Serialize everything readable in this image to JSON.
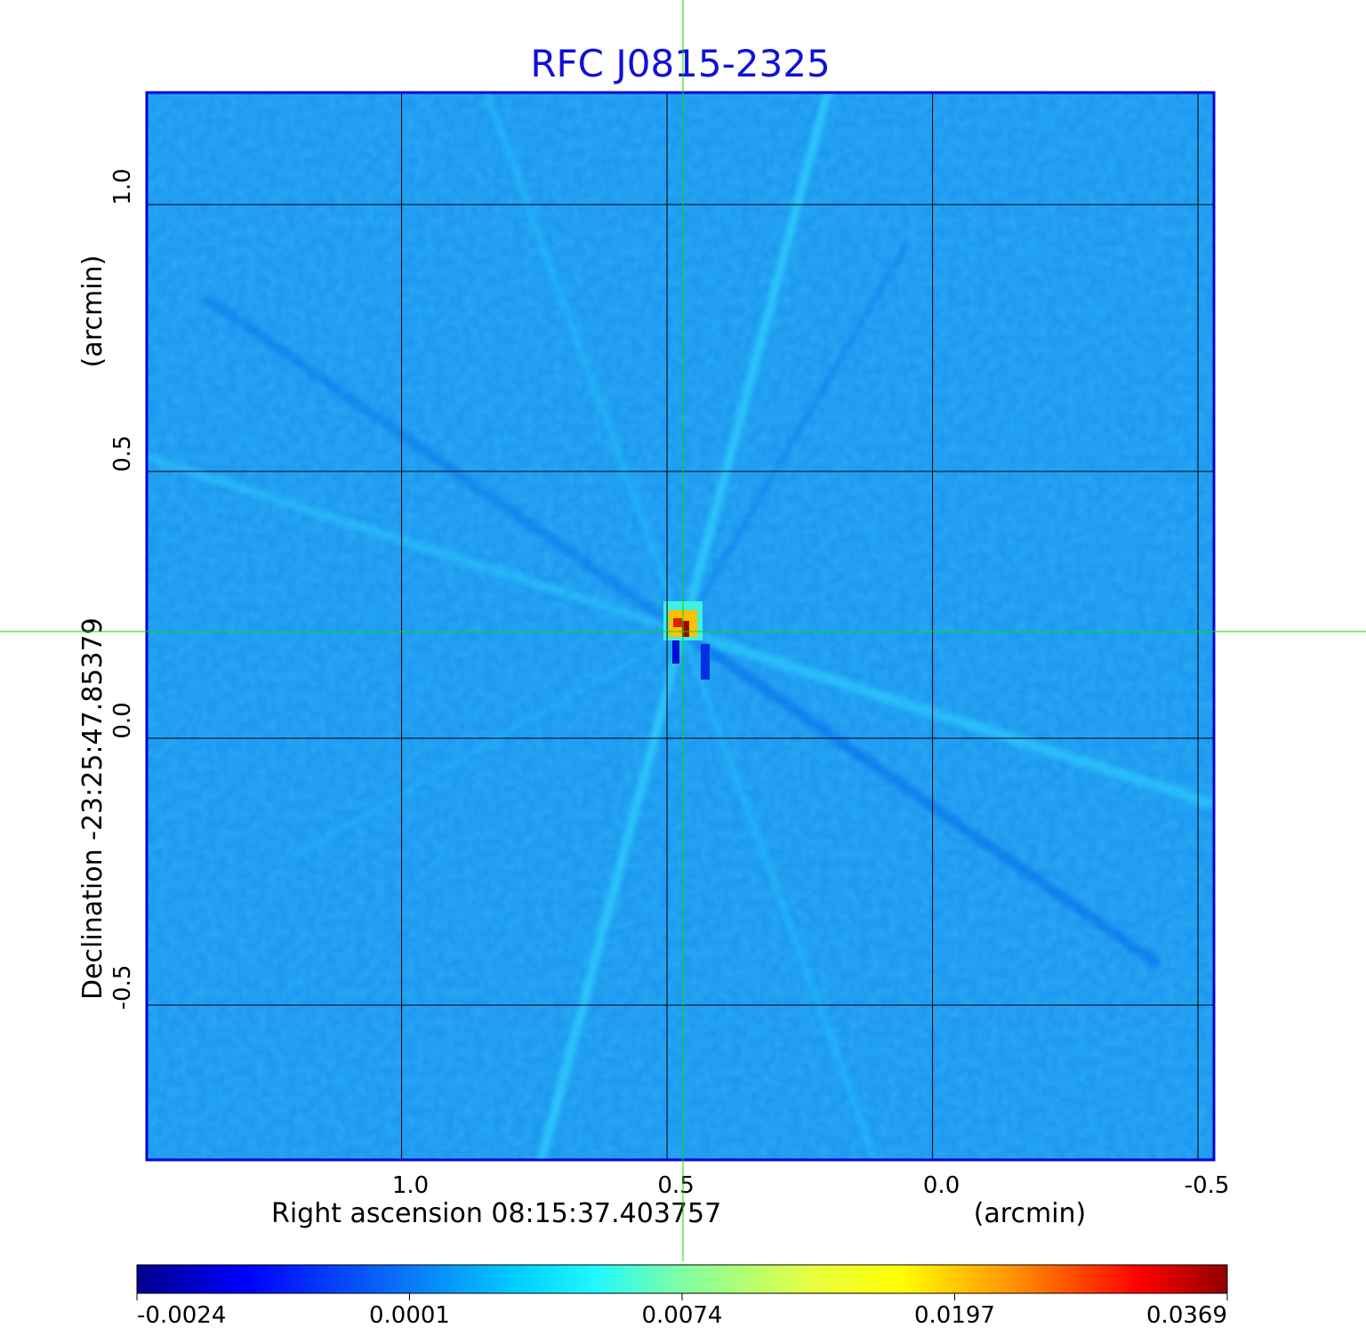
{
  "chart_data": {
    "type": "heatmap",
    "title": "RFC J0815-2325",
    "xlabel": "Right ascension  08:15:37.403757",
    "xunit": "(arcmin)",
    "ylabel": "Declination  -23:25:47.85379",
    "yunit": "(arcmin)",
    "x_range": [
      1.48,
      -0.53
    ],
    "y_range": [
      -0.79,
      1.21
    ],
    "x_ticks": [
      1.0,
      0.5,
      0.0,
      -0.5
    ],
    "x_tick_labels": [
      "1.0",
      "0.5",
      "0.0",
      "-0.5"
    ],
    "y_ticks": [
      1.0,
      0.5,
      0.0,
      -0.5
    ],
    "y_tick_labels": [
      "1.0",
      "0.5",
      "0.0",
      "-0.5"
    ],
    "grid": true,
    "crosshair": {
      "x": 0.47,
      "y": 0.2
    },
    "peak": {
      "x": 0.47,
      "y": 0.2
    },
    "colormap": "jet",
    "colorbar": {
      "ticks": [
        -0.0024,
        0.0001,
        0.0074,
        0.0197,
        0.0369
      ],
      "tick_labels": [
        "-0.0024",
        "0.0001",
        "0.0074",
        "0.0197",
        "0.0369"
      ],
      "placement": "bottom"
    }
  },
  "colors": {
    "title": "#1010d8",
    "background_field": "#1d99f0",
    "frame": "#0000d0",
    "grid": "#000000",
    "crosshair": "#00e000"
  }
}
